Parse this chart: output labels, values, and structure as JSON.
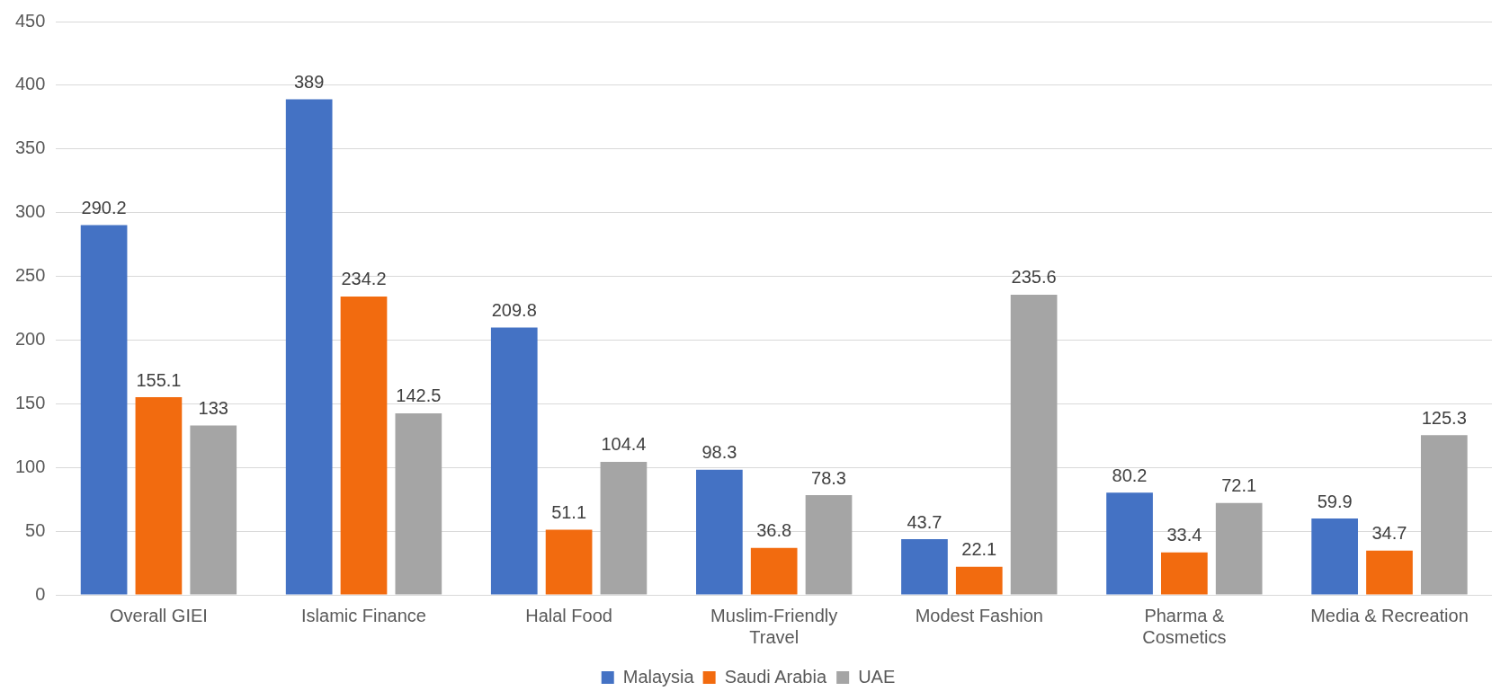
{
  "chart_data": {
    "type": "bar",
    "categories": [
      "Overall GIEI",
      "Islamic Finance",
      "Halal Food",
      "Muslim-Friendly Travel",
      "Modest Fashion",
      "Pharma & Cosmetics",
      "Media & Recreation"
    ],
    "series": [
      {
        "name": "Malaysia",
        "color": "#4472c4",
        "values": [
          290.2,
          389,
          209.8,
          98.3,
          43.7,
          80.2,
          59.9
        ]
      },
      {
        "name": "Saudi Arabia",
        "color": "#f26b0f",
        "values": [
          155.1,
          234.2,
          51.1,
          36.8,
          22.1,
          33.4,
          34.7
        ]
      },
      {
        "name": "UAE",
        "color": "#a5a5a5",
        "values": [
          133,
          142.5,
          104.4,
          78.3,
          235.6,
          72.1,
          125.3
        ]
      }
    ],
    "ylim": [
      0,
      450
    ],
    "yticks": [
      0,
      50,
      100,
      150,
      200,
      250,
      300,
      350,
      400,
      450
    ],
    "grid": "y",
    "legend": "bottom",
    "data_labels": true
  }
}
